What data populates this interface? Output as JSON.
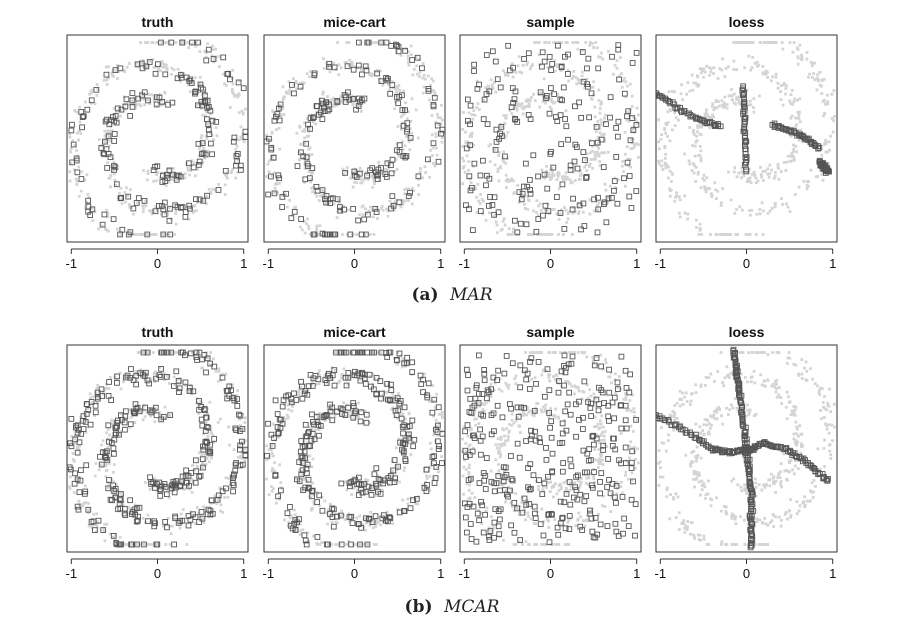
{
  "figure": {
    "rows": [
      {
        "id": "mar",
        "caption_label": "(a)",
        "caption_text": "MAR",
        "panels": [
          {
            "title": "truth",
            "method": "truth"
          },
          {
            "title": "mice-cart",
            "method": "cart"
          },
          {
            "title": "sample",
            "method": "sample"
          },
          {
            "title": "loess",
            "method": "loess"
          }
        ]
      },
      {
        "id": "mcar",
        "caption_label": "(b)",
        "caption_text": "MCAR",
        "panels": [
          {
            "title": "truth",
            "method": "truth"
          },
          {
            "title": "mice-cart",
            "method": "cart"
          },
          {
            "title": "sample",
            "method": "sample"
          },
          {
            "title": "loess",
            "method": "loess"
          }
        ]
      }
    ],
    "x_ticks": [
      -1,
      0,
      1
    ],
    "x_tick_labels": [
      "-1",
      "0",
      "1"
    ]
  },
  "chart_data": {
    "type": "scatter",
    "description_of_data": "Two-arm spiral point cloud (grey) with imputed points (open squares) for four methods under two missingness mechanisms.",
    "xlim": [
      -1.1,
      1.1
    ],
    "ylim": [
      -1.1,
      1.1
    ],
    "x_ticks": [
      -1,
      0,
      1
    ],
    "background_color": "#d4d4d4",
    "marker_color": "#555555",
    "panels": [
      "truth",
      "mice-cart",
      "sample",
      "loess"
    ],
    "conditions": [
      "MAR",
      "MCAR"
    ],
    "loess_curves": {
      "MAR": [
        {
          "name": "",
          "x": [
            -1.05,
            -0.8,
            -0.55,
            -0.3
          ],
          "y": [
            0.48,
            0.32,
            0.2,
            0.13
          ]
        },
        {
          "name": "",
          "x": [
            -0.04,
            -0.02,
            0.0
          ],
          "y": [
            0.55,
            0.1,
            -0.35
          ]
        },
        {
          "name": "",
          "x": [
            0.3,
            0.5,
            0.7,
            0.85
          ],
          "y": [
            0.15,
            0.08,
            0.0,
            -0.1
          ]
        },
        {
          "name": "",
          "x": [
            0.85,
            0.95
          ],
          "y": [
            -0.25,
            -0.35
          ]
        }
      ],
      "MCAR": [
        {
          "name": "",
          "x": [
            -1.05,
            -0.7,
            -0.4,
            -0.2,
            0.0,
            0.2,
            0.45,
            0.7,
            0.95
          ],
          "y": [
            0.35,
            0.18,
            0.0,
            -0.05,
            -0.02,
            0.05,
            0.0,
            -0.15,
            -0.35
          ]
        },
        {
          "name": "",
          "x": [
            -0.15,
            -0.08,
            0.0,
            0.06,
            0.05
          ],
          "y": [
            1.05,
            0.6,
            0.0,
            -0.5,
            -1.05
          ]
        }
      ]
    }
  }
}
